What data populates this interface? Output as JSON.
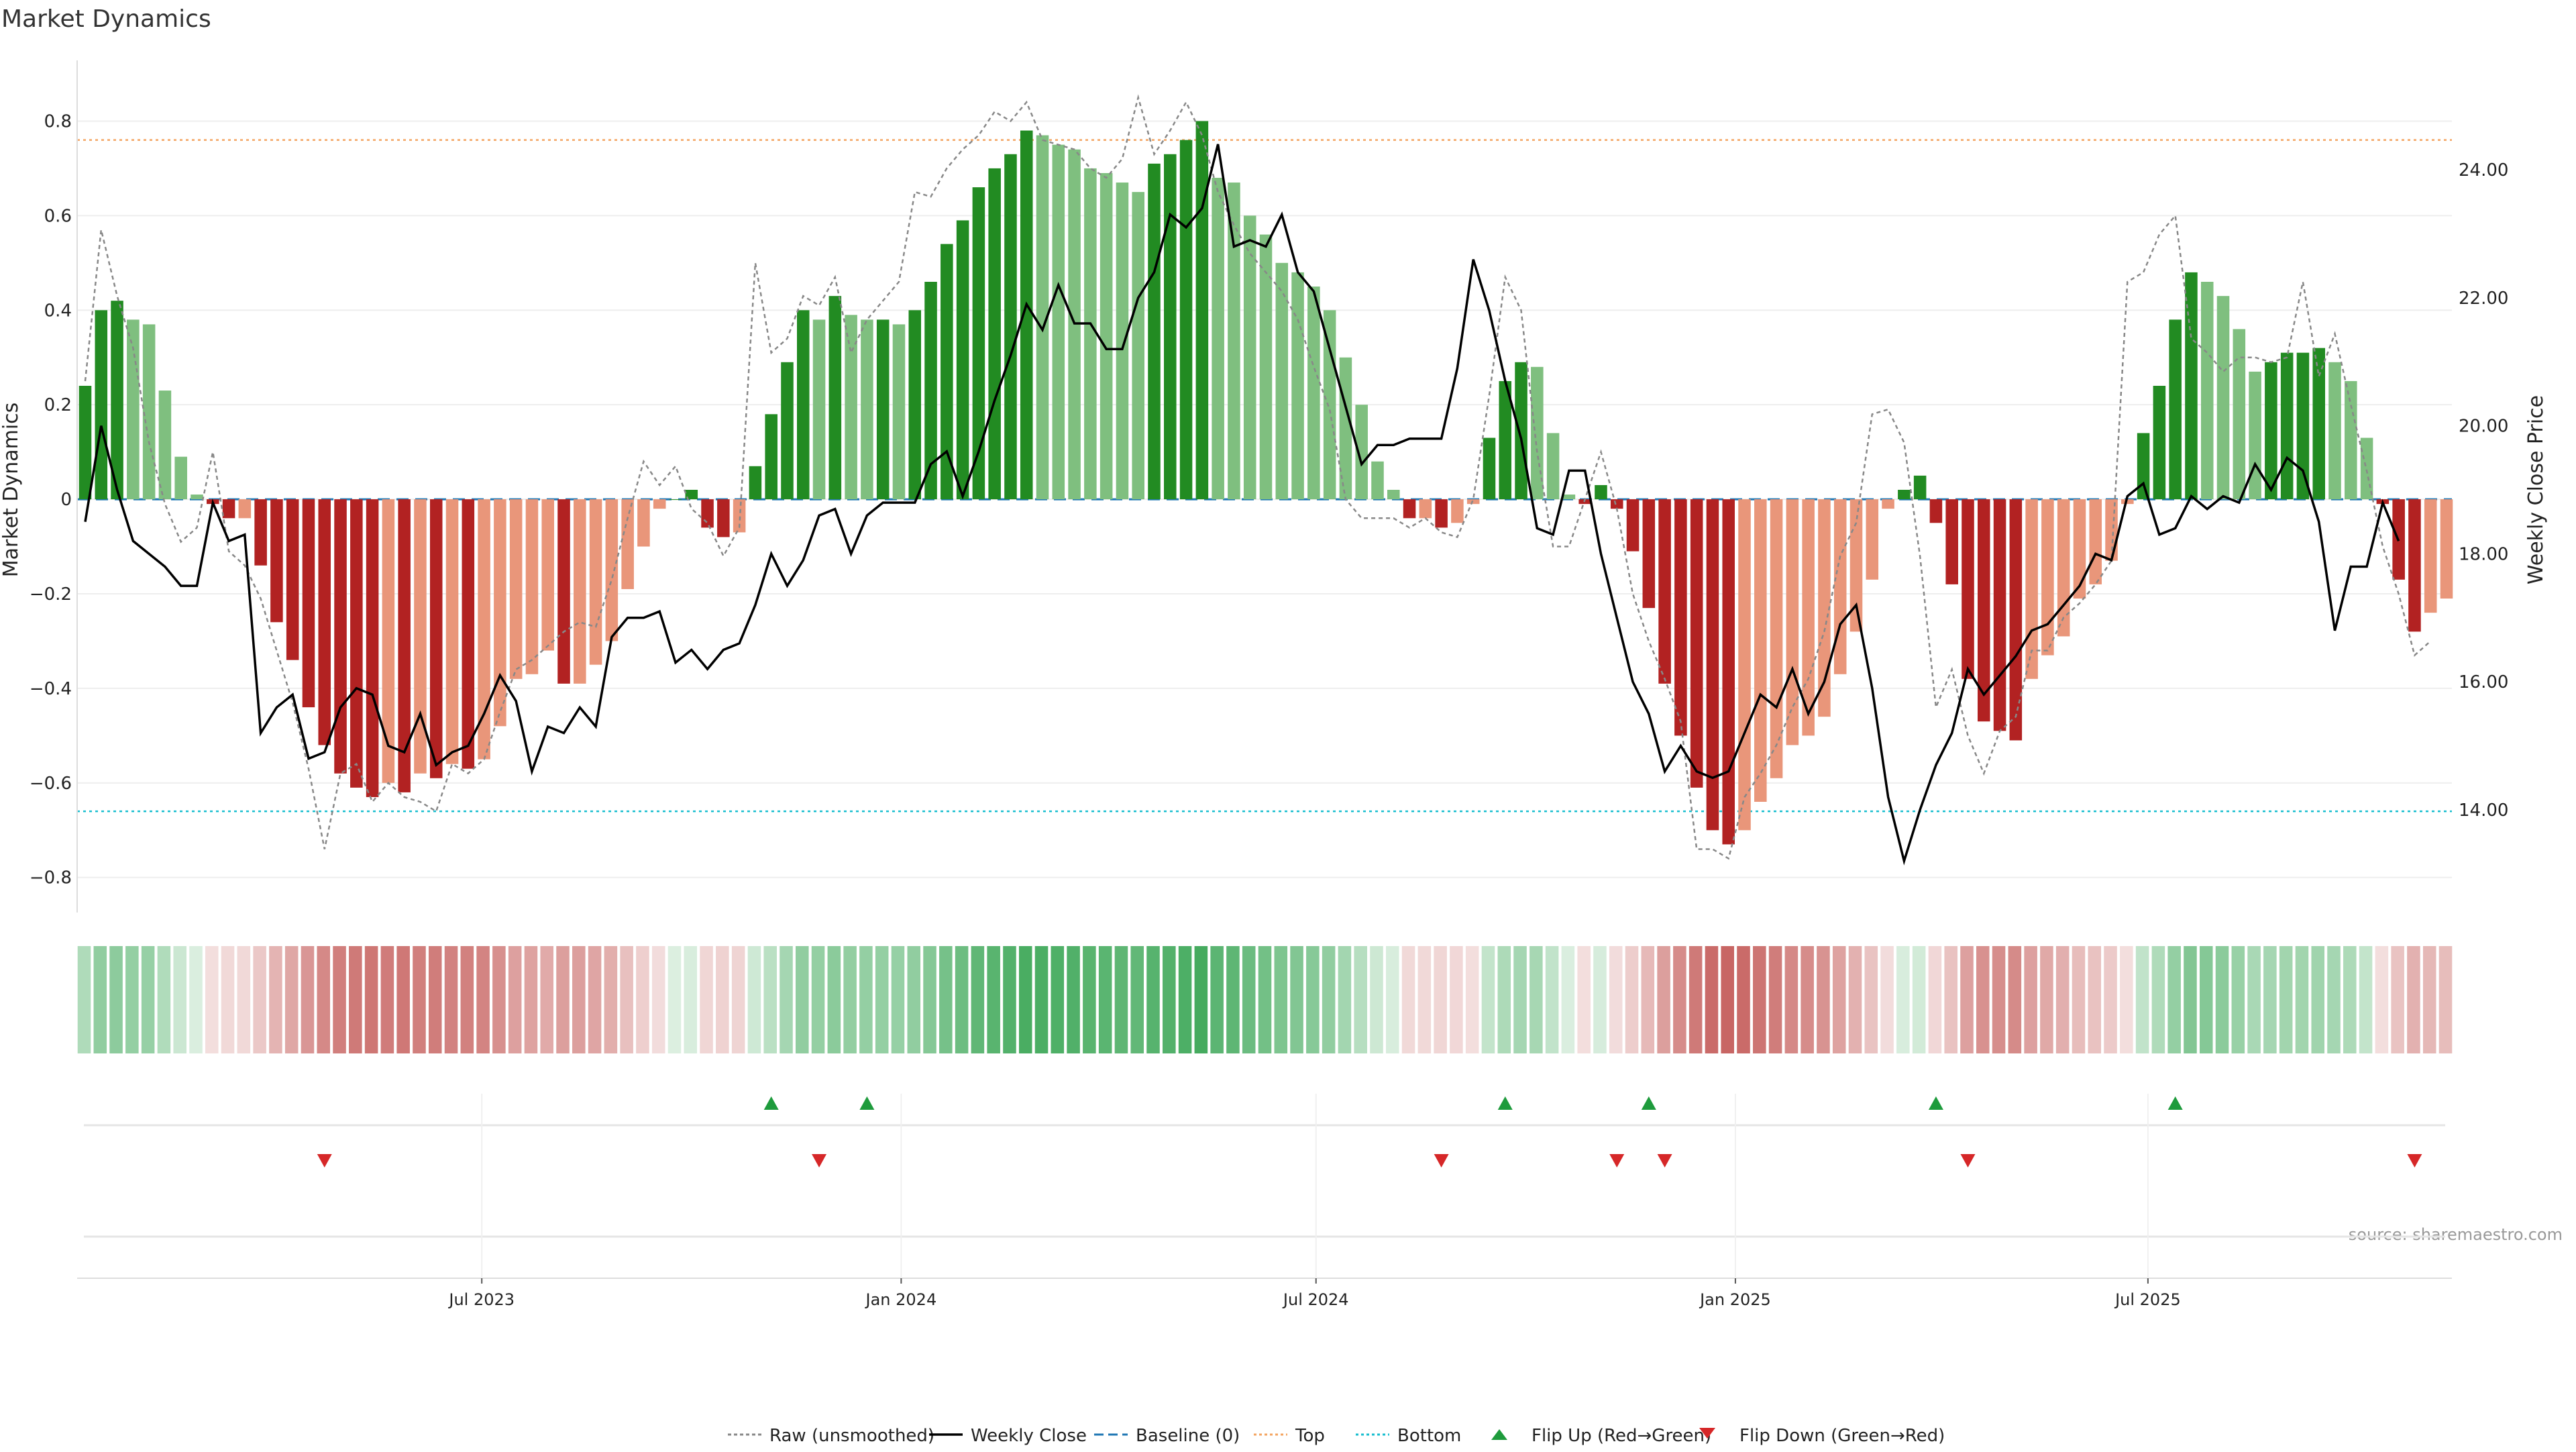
{
  "title": "Market Dynamics",
  "source": "source: sharemaestro.com",
  "colors": {
    "bull_strong": "#228b22",
    "bull_weak": "#7fbf7f",
    "bear_strong": "#b22222",
    "bear_weak": "#e9967a",
    "raw": "#888888",
    "close": "#000000",
    "baseline": "#1f77b4",
    "top": "#f4a460",
    "bottom": "#17becf",
    "flip_up": "#1e9b3c",
    "flip_down": "#d62728"
  },
  "legend": [
    {
      "key": "raw",
      "label": "Raw (unsmoothed)"
    },
    {
      "key": "close",
      "label": "Weekly Close"
    },
    {
      "key": "baseline",
      "label": "Baseline (0)"
    },
    {
      "key": "top",
      "label": "Top"
    },
    {
      "key": "bottom",
      "label": "Bottom"
    },
    {
      "key": "flip_up",
      "label": "Flip Up (Red→Green)"
    },
    {
      "key": "flip_down",
      "label": "Flip Down (Green→Red)"
    }
  ],
  "chart_data": {
    "type": "bar",
    "title": "Market Dynamics",
    "ylabel_left": "Market Dynamics",
    "ylabel_right": "Weekly Close Price",
    "x_start": "2023-01-08",
    "x_step_days": 7,
    "ylim_left": [
      -0.86,
      0.9
    ],
    "ylim_right": [
      12.5,
      25.5
    ],
    "yticks_left": [
      "0.8",
      "0.6",
      "0.4",
      "0.2",
      "0",
      "−0.2",
      "−0.4",
      "−0.6",
      "−0.8"
    ],
    "yticks_left_values": [
      0.8,
      0.6,
      0.4,
      0.2,
      0,
      -0.2,
      -0.4,
      -0.6,
      -0.8
    ],
    "yticks_right": [
      "24.00",
      "22.00",
      "20.00",
      "18.00",
      "16.00",
      "14.00"
    ],
    "yticks_right_values": [
      24,
      22,
      20,
      18,
      16,
      14
    ],
    "xticks": [
      {
        "label": "Jul 2023",
        "date": "2023-07-01"
      },
      {
        "label": "Jan 2024",
        "date": "2024-01-01"
      },
      {
        "label": "Jul 2024",
        "date": "2024-07-01"
      },
      {
        "label": "Jan 2025",
        "date": "2025-01-01"
      },
      {
        "label": "Jul 2025",
        "date": "2025-07-01"
      }
    ],
    "top_level": 0.76,
    "bottom_level": -0.66,
    "baseline": 0,
    "grid": true,
    "legend_position": "bottom",
    "series": [
      {
        "name": "Market Dynamics",
        "values": [
          0.24,
          0.4,
          0.42,
          0.38,
          0.37,
          0.23,
          0.09,
          0.01,
          -0.01,
          -0.04,
          -0.04,
          -0.14,
          -0.26,
          -0.34,
          -0.44,
          -0.52,
          -0.58,
          -0.61,
          -0.63,
          -0.6,
          -0.62,
          -0.58,
          -0.59,
          -0.56,
          -0.57,
          -0.55,
          -0.48,
          -0.38,
          -0.37,
          -0.32,
          -0.39,
          -0.39,
          -0.35,
          -0.3,
          -0.19,
          -0.1,
          -0.02,
          0.0,
          0.02,
          -0.06,
          -0.08,
          -0.07,
          0.07,
          0.18,
          0.29,
          0.4,
          0.38,
          0.43,
          0.39,
          0.38,
          0.38,
          0.37,
          0.4,
          0.46,
          0.54,
          0.59,
          0.66,
          0.7,
          0.73,
          0.78,
          0.77,
          0.75,
          0.74,
          0.7,
          0.69,
          0.67,
          0.65,
          0.71,
          0.73,
          0.76,
          0.8,
          0.68,
          0.67,
          0.6,
          0.56,
          0.5,
          0.48,
          0.45,
          0.4,
          0.3,
          0.2,
          0.08,
          0.02,
          -0.04,
          -0.04,
          -0.06,
          -0.05,
          -0.01,
          0.13,
          0.25,
          0.29,
          0.28,
          0.14,
          0.01,
          -0.01,
          0.03,
          -0.02,
          -0.11,
          -0.23,
          -0.39,
          -0.5,
          -0.61,
          -0.7,
          -0.73,
          -0.7,
          -0.64,
          -0.59,
          -0.52,
          -0.5,
          -0.46,
          -0.37,
          -0.28,
          -0.17,
          -0.02,
          0.02,
          0.05,
          -0.05,
          -0.18,
          -0.38,
          -0.47,
          -0.49,
          -0.51,
          -0.38,
          -0.33,
          -0.29,
          -0.21,
          -0.18,
          -0.13,
          -0.01,
          0.14,
          0.24,
          0.38,
          0.48,
          0.46,
          0.43,
          0.36,
          0.27,
          0.29,
          0.31,
          0.31,
          0.32,
          0.29,
          0.25,
          0.13,
          -0.01,
          -0.17,
          -0.28,
          -0.24,
          -0.21
        ]
      },
      {
        "name": "Raw (unsmoothed)",
        "values": [
          0.25,
          0.57,
          0.43,
          0.32,
          0.12,
          -0.01,
          -0.09,
          -0.06,
          0.1,
          -0.11,
          -0.14,
          -0.21,
          -0.32,
          -0.43,
          -0.57,
          -0.74,
          -0.58,
          -0.56,
          -0.64,
          -0.6,
          -0.63,
          -0.64,
          -0.66,
          -0.56,
          -0.58,
          -0.55,
          -0.45,
          -0.36,
          -0.34,
          -0.31,
          -0.28,
          -0.26,
          -0.27,
          -0.17,
          -0.04,
          0.08,
          0.03,
          0.07,
          -0.02,
          -0.05,
          -0.12,
          -0.06,
          0.5,
          0.31,
          0.34,
          0.43,
          0.41,
          0.47,
          0.31,
          0.38,
          0.42,
          0.46,
          0.65,
          0.64,
          0.7,
          0.74,
          0.77,
          0.82,
          0.8,
          0.84,
          0.76,
          0.75,
          0.74,
          0.7,
          0.68,
          0.72,
          0.85,
          0.73,
          0.78,
          0.84,
          0.77,
          0.65,
          0.58,
          0.52,
          0.48,
          0.44,
          0.38,
          0.28,
          0.19,
          0.0,
          -0.04,
          -0.04,
          -0.04,
          -0.06,
          -0.04,
          -0.07,
          -0.08,
          0.0,
          0.22,
          0.47,
          0.4,
          0.1,
          -0.1,
          -0.1,
          0.0,
          0.1,
          -0.02,
          -0.2,
          -0.3,
          -0.38,
          -0.47,
          -0.74,
          -0.74,
          -0.76,
          -0.63,
          -0.58,
          -0.52,
          -0.44,
          -0.38,
          -0.28,
          -0.12,
          -0.05,
          0.18,
          0.19,
          0.12,
          -0.12,
          -0.44,
          -0.36,
          -0.5,
          -0.58,
          -0.49,
          -0.46,
          -0.32,
          -0.32,
          -0.25,
          -0.22,
          -0.18,
          -0.13,
          0.46,
          0.48,
          0.56,
          0.6,
          0.34,
          0.31,
          0.27,
          0.3,
          0.3,
          0.29,
          0.3,
          0.46,
          0.26,
          0.35,
          0.2,
          0.06,
          -0.1,
          -0.2,
          -0.33,
          -0.3
        ]
      },
      {
        "name": "Weekly Close",
        "axis": "right",
        "values": [
          18.5,
          20.0,
          19.0,
          18.2,
          18.0,
          17.8,
          17.5,
          17.5,
          18.8,
          18.2,
          18.3,
          15.2,
          15.6,
          15.8,
          14.8,
          14.9,
          15.6,
          15.9,
          15.8,
          15.0,
          14.9,
          15.5,
          14.7,
          14.9,
          15.0,
          15.5,
          16.1,
          15.7,
          14.6,
          15.3,
          15.2,
          15.6,
          15.3,
          16.7,
          17.0,
          17.0,
          17.1,
          16.3,
          16.5,
          16.2,
          16.5,
          16.6,
          17.2,
          18.0,
          17.5,
          17.9,
          18.6,
          18.7,
          18.0,
          18.6,
          18.8,
          18.8,
          18.8,
          19.4,
          19.6,
          18.9,
          19.6,
          20.4,
          21.1,
          21.9,
          21.5,
          22.2,
          21.6,
          21.6,
          21.2,
          21.2,
          22.0,
          22.4,
          23.3,
          23.1,
          23.4,
          24.4,
          22.8,
          22.9,
          22.8,
          23.3,
          22.4,
          22.1,
          21.2,
          20.3,
          19.4,
          19.7,
          19.7,
          19.8,
          19.8,
          19.8,
          20.9,
          22.6,
          21.8,
          20.7,
          19.8,
          18.4,
          18.3,
          19.3,
          19.3,
          18.0,
          17.0,
          16.0,
          15.5,
          14.6,
          15.0,
          14.6,
          14.5,
          14.6,
          15.2,
          15.8,
          15.6,
          16.2,
          15.5,
          16.0,
          16.9,
          17.2,
          15.9,
          14.2,
          13.2,
          14.0,
          14.7,
          15.2,
          16.2,
          15.8,
          16.1,
          16.4,
          16.8,
          16.9,
          17.2,
          17.5,
          18.0,
          17.9,
          18.9,
          19.1,
          18.3,
          18.4,
          18.9,
          18.7,
          18.9,
          18.8,
          19.4,
          19.0,
          19.5,
          19.3,
          18.5,
          16.8,
          17.8,
          17.8,
          18.8,
          18.2
        ]
      }
    ],
    "heatmap_strip": {
      "description_values_follow_series": "Market Dynamics"
    },
    "flip_up_dates": [
      "2023-11-05",
      "2023-12-17",
      "2024-09-22",
      "2024-11-24",
      "2025-03-30",
      "2025-07-13"
    ],
    "flip_down_dates": [
      "2023-04-23",
      "2023-11-26",
      "2024-08-25",
      "2024-11-10",
      "2024-12-01",
      "2025-04-13",
      "2025-10-26"
    ]
  }
}
